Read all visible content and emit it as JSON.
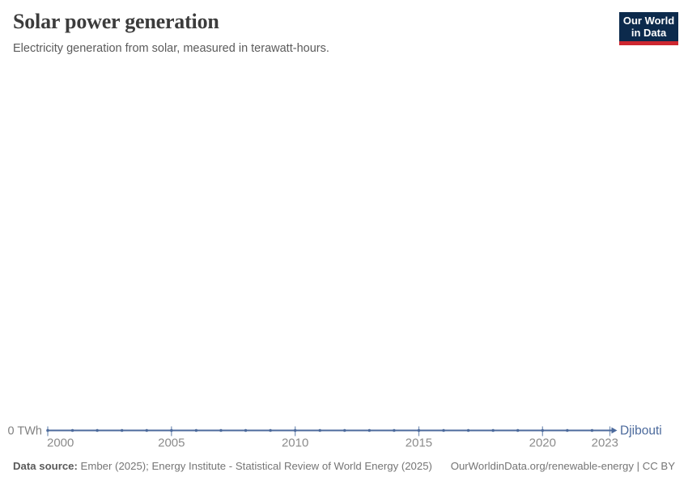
{
  "header": {
    "title": "Solar power generation",
    "subtitle": "Electricity generation from solar, measured in terawatt-hours.",
    "logo": {
      "line1": "Our World",
      "line2": "in Data"
    }
  },
  "chart_data": {
    "type": "line",
    "title": "Solar power generation",
    "unit": "TWh",
    "x": [
      2000,
      2001,
      2002,
      2003,
      2004,
      2005,
      2006,
      2007,
      2008,
      2009,
      2010,
      2011,
      2012,
      2013,
      2014,
      2015,
      2016,
      2017,
      2018,
      2019,
      2020,
      2021,
      2022,
      2023
    ],
    "series": [
      {
        "name": "Djibouti",
        "color": "#4c6a9c",
        "values": [
          0,
          0,
          0,
          0,
          0,
          0,
          0,
          0,
          0,
          0,
          0,
          0,
          0,
          0,
          0,
          0,
          0,
          0,
          0,
          0,
          0,
          0,
          0,
          0
        ]
      }
    ],
    "xticks": [
      2000,
      2005,
      2010,
      2015,
      2020,
      2023
    ],
    "yticks": [
      {
        "value": 0,
        "label": "0 TWh"
      }
    ],
    "xlim": [
      2000,
      2023
    ],
    "grid": "none",
    "legend_position": "end-of-line"
  },
  "footer": {
    "datasource_label": "Data source:",
    "datasource_text": " Ember (2025); Energy Institute - Statistical Review of World Energy (2025)",
    "link_text": "OurWorldinData.org/renewable-energy | CC BY"
  },
  "colors": {
    "line": "#4c6a9c",
    "tick_label": "#8c8c8c",
    "axis_tick": "#8097ba",
    "y_label": "#808080",
    "title": "#3c3c3c",
    "subtitle": "#5b5b5b",
    "footer": "#757575",
    "logo_bg": "#0c2a4c",
    "logo_bar": "#cd2730"
  }
}
